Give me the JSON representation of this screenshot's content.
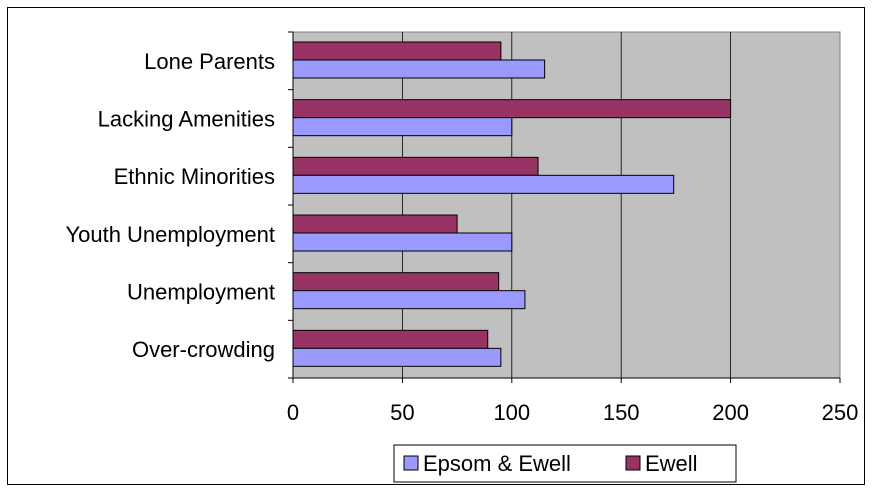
{
  "chart_data": {
    "type": "bar",
    "orientation": "horizontal",
    "title": "",
    "xlabel": "",
    "ylabel": "",
    "categories": [
      "Lone Parents",
      "Lacking Amenities",
      "Ethnic Minorities",
      "Youth Unemployment",
      "Unemployment",
      "Over-crowding"
    ],
    "series": [
      {
        "name": "Epsom & Ewell",
        "color": "#9999ff",
        "values": [
          115,
          100,
          174,
          100,
          106,
          95
        ]
      },
      {
        "name": "Ewell",
        "color": "#993366",
        "values": [
          95,
          200,
          112,
          75,
          94,
          89
        ]
      }
    ],
    "xlim": [
      0,
      250
    ],
    "xticks": [
      "0",
      "50",
      "100",
      "150",
      "200",
      "250"
    ],
    "grid": "vertical",
    "plot_background": "#c0c0c0",
    "legend_position": "bottom"
  }
}
